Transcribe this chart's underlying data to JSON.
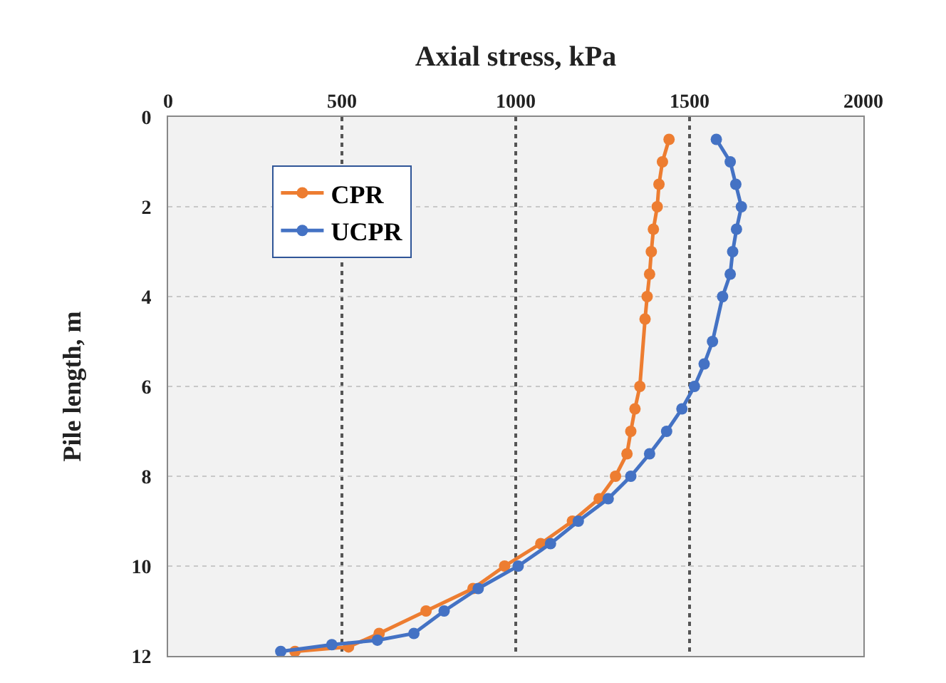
{
  "chart_data": {
    "type": "line",
    "xlabel": "Axial stress, kPa",
    "ylabel": "Pile length, m",
    "xlim": [
      0,
      2000
    ],
    "xticks": [
      0,
      500,
      1000,
      1500,
      2000
    ],
    "ylim": [
      12,
      0
    ],
    "yticks": [
      0,
      2,
      4,
      6,
      8,
      10,
      12
    ],
    "grid": true,
    "legend": "top left",
    "marker": "circle",
    "line_style": "solid",
    "series": [
      {
        "name": "CPR",
        "color": "#ed7d31",
        "x": [
          1441,
          1422,
          1412,
          1407,
          1396,
          1390,
          1385,
          1378,
          1372,
          1357,
          1343,
          1331,
          1320,
          1287,
          1240,
          1163,
          1072,
          968,
          877,
          742,
          607,
          519,
          365
        ],
        "values": [
          0.5,
          1,
          1.5,
          2,
          2.5,
          3,
          3.5,
          4,
          4.5,
          6,
          6.5,
          7,
          7.5,
          8,
          8.5,
          9,
          9.5,
          10,
          10.5,
          11,
          11.5,
          11.8,
          11.9
        ]
      },
      {
        "name": "UCPR",
        "color": "#4472c4",
        "x": [
          1577,
          1617,
          1633,
          1649,
          1635,
          1624,
          1617,
          1595,
          1566,
          1542,
          1514,
          1478,
          1434,
          1385,
          1331,
          1266,
          1180,
          1100,
          1007,
          892,
          794,
          707,
          602,
          471,
          324
        ],
        "values": [
          0.5,
          1,
          1.5,
          2,
          2.5,
          3,
          3.5,
          4,
          5,
          5.5,
          6,
          6.5,
          7,
          7.5,
          8,
          8.5,
          9,
          9.5,
          10,
          10.5,
          11,
          11.5,
          11.65,
          11.75,
          11.9
        ]
      }
    ]
  }
}
